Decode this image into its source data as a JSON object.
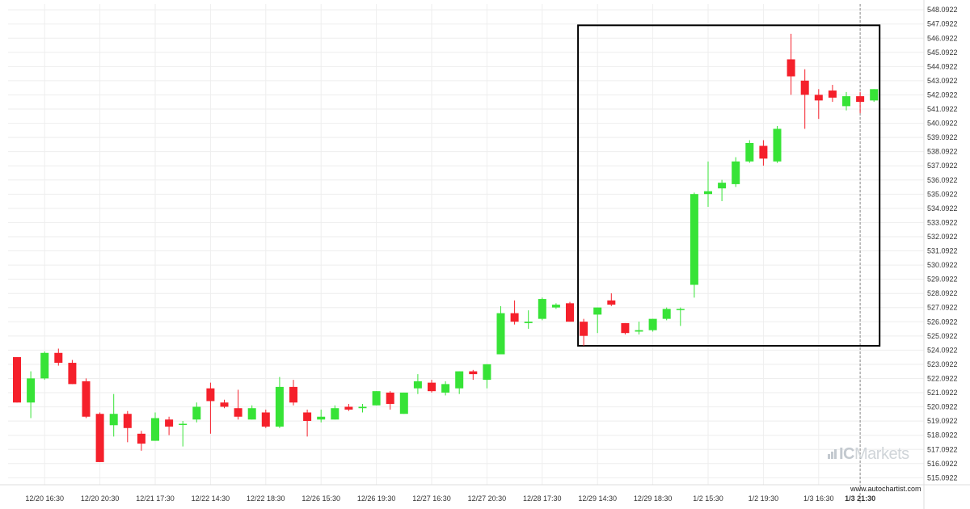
{
  "chart_data": {
    "type": "candlestick",
    "y_ticks": [
      "515.0922",
      "516.0922",
      "517.0922",
      "518.0922",
      "519.0922",
      "520.0922",
      "521.0922",
      "522.0922",
      "523.0922",
      "524.0922",
      "525.0922",
      "526.0922",
      "527.0922",
      "528.0922",
      "529.0922",
      "530.0922",
      "531.0922",
      "532.0922",
      "533.0922",
      "534.0922",
      "535.0922",
      "536.0922",
      "537.0922",
      "538.0922",
      "539.0922",
      "540.0922",
      "541.0922",
      "542.0922",
      "543.0922",
      "544.0922",
      "545.0922",
      "546.0922",
      "547.0922",
      "548.0922"
    ],
    "ylim": [
      514.6,
      548.5
    ],
    "x_labels": [
      {
        "label": "12/20 16:30",
        "i": 2
      },
      {
        "label": "12/20 20:30",
        "i": 6
      },
      {
        "label": "12/21 17:30",
        "i": 10
      },
      {
        "label": "12/22 14:30",
        "i": 14
      },
      {
        "label": "12/22 18:30",
        "i": 18
      },
      {
        "label": "12/26 15:30",
        "i": 22
      },
      {
        "label": "12/26 19:30",
        "i": 26
      },
      {
        "label": "12/27 16:30",
        "i": 30
      },
      {
        "label": "12/27 20:30",
        "i": 34
      },
      {
        "label": "12/28 17:30",
        "i": 38
      },
      {
        "label": "12/29 14:30",
        "i": 42
      },
      {
        "label": "12/29 18:30",
        "i": 46
      },
      {
        "label": "1/2 15:30",
        "i": 50
      },
      {
        "label": "1/2 19:30",
        "i": 54
      },
      {
        "label": "1/3 16:30",
        "i": 58
      },
      {
        "label": "1/3 21:30",
        "i": 61,
        "bold": true
      }
    ],
    "candles": [
      [
        523.6,
        523.6,
        520.4,
        520.4
      ],
      [
        520.4,
        522.6,
        519.3,
        522.1
      ],
      [
        522.1,
        524.0,
        522.0,
        523.9
      ],
      [
        523.9,
        524.2,
        523.0,
        523.2
      ],
      [
        523.2,
        523.4,
        521.7,
        521.7
      ],
      [
        521.9,
        522.1,
        519.3,
        519.4
      ],
      [
        519.6,
        519.7,
        516.2,
        516.2
      ],
      [
        518.8,
        521.0,
        518.0,
        519.6
      ],
      [
        519.6,
        519.8,
        517.6,
        518.6
      ],
      [
        518.2,
        518.4,
        517.0,
        517.5
      ],
      [
        517.7,
        519.7,
        517.7,
        519.3
      ],
      [
        519.2,
        519.4,
        518.1,
        518.7
      ],
      [
        518.9,
        519.1,
        517.3,
        518.9
      ],
      [
        519.2,
        520.4,
        519.0,
        520.1
      ],
      [
        521.4,
        521.8,
        518.2,
        520.5
      ],
      [
        520.4,
        520.6,
        520.0,
        520.1
      ],
      [
        520.0,
        521.3,
        519.2,
        519.4
      ],
      [
        519.2,
        520.2,
        519.2,
        520.0
      ],
      [
        519.7,
        519.9,
        518.6,
        518.7
      ],
      [
        518.7,
        522.2,
        518.6,
        521.5
      ],
      [
        521.5,
        522.0,
        520.2,
        520.4
      ],
      [
        519.7,
        519.9,
        518.0,
        519.1
      ],
      [
        519.2,
        519.9,
        519.0,
        519.4
      ],
      [
        519.2,
        520.2,
        519.2,
        520.0
      ],
      [
        520.1,
        520.3,
        519.8,
        519.9
      ],
      [
        520.0,
        520.3,
        519.7,
        520.1
      ],
      [
        520.2,
        521.2,
        520.2,
        521.2
      ],
      [
        521.1,
        521.2,
        519.9,
        520.3
      ],
      [
        519.6,
        521.1,
        519.6,
        521.1
      ],
      [
        521.4,
        522.4,
        521.0,
        521.9
      ],
      [
        521.8,
        522.0,
        521.1,
        521.2
      ],
      [
        521.1,
        521.9,
        520.9,
        521.7
      ],
      [
        521.4,
        522.6,
        521.0,
        522.6
      ],
      [
        522.6,
        522.7,
        522.0,
        522.4
      ],
      [
        522.0,
        523.1,
        521.4,
        523.1
      ],
      [
        523.8,
        527.2,
        523.8,
        526.7
      ],
      [
        526.7,
        527.6,
        525.9,
        526.1
      ],
      [
        526.0,
        526.9,
        525.6,
        526.1
      ],
      [
        526.3,
        527.8,
        526.2,
        527.7
      ],
      [
        527.1,
        527.4,
        527.0,
        527.3
      ],
      [
        527.4,
        527.5,
        526.1,
        526.1
      ],
      [
        526.1,
        526.3,
        524.4,
        525.1
      ],
      [
        526.6,
        527.1,
        525.3,
        527.1
      ],
      [
        527.6,
        528.1,
        527.2,
        527.3
      ],
      [
        526.0,
        526.0,
        525.2,
        525.3
      ],
      [
        525.4,
        526.1,
        525.2,
        525.5
      ],
      [
        525.5,
        526.3,
        525.4,
        526.3
      ],
      [
        526.3,
        527.1,
        526.2,
        527.0
      ],
      [
        527.0,
        527.1,
        525.8,
        527.0
      ],
      [
        528.7,
        535.2,
        527.8,
        535.1
      ],
      [
        535.1,
        537.4,
        534.2,
        535.3
      ],
      [
        535.5,
        536.1,
        534.6,
        535.9
      ],
      [
        535.8,
        537.7,
        535.6,
        537.4
      ],
      [
        537.4,
        538.9,
        537.3,
        538.7
      ],
      [
        538.5,
        538.9,
        537.1,
        537.6
      ],
      [
        537.4,
        539.9,
        537.3,
        539.7
      ],
      [
        544.6,
        546.4,
        542.1,
        543.4
      ],
      [
        543.1,
        543.9,
        539.7,
        542.1
      ],
      [
        542.1,
        542.5,
        540.4,
        541.7
      ],
      [
        542.4,
        542.8,
        541.6,
        541.9
      ],
      [
        541.3,
        542.3,
        541.0,
        542.0
      ],
      [
        542.0,
        542.3,
        540.8,
        541.6
      ],
      [
        541.7,
        542.5,
        541.6,
        542.5
      ]
    ],
    "colors": {
      "up": "#37e337",
      "down": "#f5202b",
      "grid": "#eeeeee",
      "box": "#000000"
    },
    "highlight_box": {
      "from_i": 41,
      "to_i": 62,
      "y_top": 547.0,
      "y_bottom": 524.4
    },
    "vertical_marker_i": 61
  },
  "watermark": {
    "text": "ICMarkets",
    "ic": "IC",
    "rest": "Markets"
  },
  "source": "www.autochartist.com"
}
